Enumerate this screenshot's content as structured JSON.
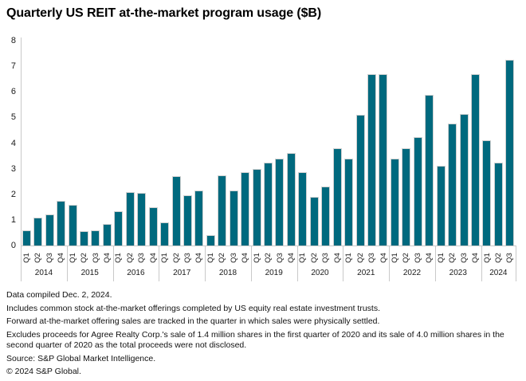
{
  "title": "Quarterly US REIT at-the-market program usage ($B)",
  "chart_data": {
    "type": "bar",
    "title": "Quarterly US REIT at-the-market program usage ($B)",
    "xlabel": "",
    "ylabel": "",
    "ylim": [
      0,
      8
    ],
    "y_ticks": [
      0,
      1,
      2,
      3,
      4,
      5,
      6,
      7,
      8
    ],
    "grid": "off",
    "legend": "none",
    "bar_color": "#00697E",
    "bar_edge_color": "#d0d0d0",
    "axis_color": "#c9c9c9",
    "groups": [
      {
        "year": "2014",
        "quarters": [
          "Q1",
          "Q2",
          "Q3",
          "Q4"
        ],
        "values": [
          0.6,
          1.1,
          1.2,
          1.75
        ]
      },
      {
        "year": "2015",
        "quarters": [
          "Q1",
          "Q2",
          "Q3",
          "Q4"
        ],
        "values": [
          1.6,
          0.55,
          0.6,
          0.85
        ]
      },
      {
        "year": "2016",
        "quarters": [
          "Q1",
          "Q2",
          "Q3",
          "Q4"
        ],
        "values": [
          1.35,
          2.1,
          2.05,
          1.5
        ]
      },
      {
        "year": "2017",
        "quarters": [
          "Q1",
          "Q2",
          "Q3",
          "Q4"
        ],
        "values": [
          0.9,
          2.7,
          1.95,
          2.15
        ]
      },
      {
        "year": "2018",
        "quarters": [
          "Q1",
          "Q2",
          "Q3",
          "Q4"
        ],
        "values": [
          0.4,
          2.75,
          2.15,
          2.85
        ]
      },
      {
        "year": "2019",
        "quarters": [
          "Q1",
          "Q2",
          "Q3",
          "Q4"
        ],
        "values": [
          3.0,
          3.25,
          3.4,
          3.6
        ]
      },
      {
        "year": "2020",
        "quarters": [
          "Q1",
          "Q2",
          "Q3",
          "Q4"
        ],
        "values": [
          2.85,
          1.9,
          2.3,
          3.8
        ]
      },
      {
        "year": "2021",
        "quarters": [
          "Q1",
          "Q2",
          "Q3",
          "Q4"
        ],
        "values": [
          3.4,
          5.1,
          6.7,
          6.7
        ]
      },
      {
        "year": "2022",
        "quarters": [
          "Q1",
          "Q2",
          "Q3",
          "Q4"
        ],
        "values": [
          3.4,
          3.8,
          4.25,
          5.9
        ]
      },
      {
        "year": "2023",
        "quarters": [
          "Q1",
          "Q2",
          "Q3",
          "Q4"
        ],
        "values": [
          3.1,
          4.75,
          5.15,
          6.7
        ]
      },
      {
        "year": "2024",
        "quarters": [
          "Q1",
          "Q2",
          "Q3"
        ],
        "values": [
          4.1,
          3.25,
          7.25
        ]
      }
    ]
  },
  "notes": [
    "Data compiled Dec. 2, 2024.",
    "Includes common stock at-the-market offerings completed by US equity real estate investment trusts.",
    "Forward at-the-market offering sales are tracked in the quarter in which sales were physically settled.",
    "Excludes proceeds for Agree Realty Corp.'s sale of 1.4 million shares in the first quarter of 2020 and its sale of 4.0 million shares in the second quarter of 2020 as the total proceeds were not disclosed.",
    "Source: S&P Global Market Intelligence.",
    "© 2024 S&P Global."
  ]
}
